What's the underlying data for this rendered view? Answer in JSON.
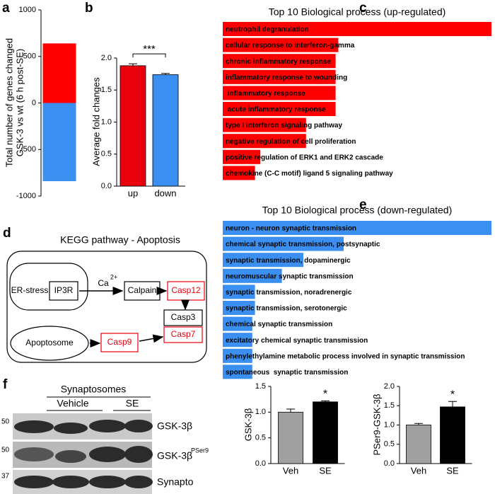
{
  "chart_data": [
    {
      "type": "bar",
      "ylabel": [
        "Total number of genes changed",
        "GSK-3 vs wt (6 h post-SE)"
      ],
      "categories": [
        null
      ],
      "series": [
        {
          "color": "#ff0000",
          "values": [
            640
          ]
        },
        {
          "color": "#3a8ff0",
          "values": [
            -840
          ]
        }
      ],
      "ylim": [
        -1000,
        1000
      ],
      "yticks": [
        -1000,
        -500,
        0,
        500,
        1000
      ]
    },
    {
      "type": "bar",
      "ylabel": "Average fold changes",
      "categories": [
        "up",
        "down"
      ],
      "values": [
        1.88,
        1.74
      ],
      "errors": [
        0.03,
        0.02
      ],
      "colors": [
        "#e8000d",
        "#3a8ff0"
      ],
      "ylim": [
        0,
        2
      ],
      "yticks": [
        {
          "value": 0,
          "label": "0.0"
        },
        0.5,
        {
          "value": 1,
          "label": "1.0"
        },
        1.5,
        {
          "value": 2,
          "label": "2.0"
        }
      ],
      "annotation": "***"
    },
    {
      "type": "hbar",
      "title": "Top 10 Biological process (up-regulated)",
      "color": "#ff0000",
      "xlim": [
        0,
        100
      ],
      "categories": [
        "neutrophil degranulation",
        "cellular response to interferon-gamma",
        "chronic inflammatory response",
        "inflammatory response to wounding",
        " inflammatory response",
        " acute inflammatory response",
        "type I interferon signaling pathway",
        "negative regulation of cell proliferation",
        "positive regulation of ERK1 and ERK2 cascade",
        "chemokine (C-C motif) ligand 5 signaling pathway"
      ],
      "values": [
        100,
        43,
        42,
        42,
        42,
        42,
        31,
        31,
        14,
        12
      ]
    },
    {
      "type": "hbar",
      "title": "Top 10 Biological process (down-regulated)",
      "color": "#3a8ff0",
      "xlim": [
        0,
        100
      ],
      "categories": [
        "neuron - neuron synaptic transmission",
        "chemical synaptic transmission, postsynaptic",
        "synaptic transmission, dopaminergic",
        "neuromuscular synaptic transmission",
        "synaptic transmission, noradrenergic",
        "synaptic transmission, serotonergic",
        "chemical synaptic transmission",
        "excitatory chemical synaptic transmission",
        "phenylethylamine metabolic process involved in synaptic transmission",
        "spontaneous  synaptic transmission"
      ],
      "values": [
        100,
        45,
        30,
        22,
        12,
        12,
        11,
        11,
        11,
        11
      ]
    },
    {
      "type": "bar",
      "ylabel": "GSK-3β",
      "categories": [
        "Veh",
        "SE"
      ],
      "values": [
        1,
        1.2
      ],
      "errors": [
        0.06,
        0.02
      ],
      "colors": [
        "#a0a0a0",
        "#000000"
      ],
      "ylim": [
        0,
        1.5
      ],
      "yticks": [
        {
          "value": 0,
          "label": "0.0"
        },
        0.5,
        {
          "value": 1,
          "label": "1.0"
        },
        1.5
      ],
      "annotation": "*"
    },
    {
      "type": "bar",
      "ylabel": "PSer9-GSK-3β",
      "categories": [
        "Veh",
        "SE"
      ],
      "values": [
        1,
        1.47
      ],
      "errors": [
        0.04,
        0.14
      ],
      "colors": [
        "#a0a0a0",
        "#000000"
      ],
      "ylim": [
        0,
        2
      ],
      "yticks": [
        {
          "value": 0,
          "label": "0.0"
        },
        0.5,
        {
          "value": 1,
          "label": "1.0"
        },
        1.5,
        {
          "value": 2,
          "label": "2.0"
        }
      ],
      "annotation": "*"
    }
  ],
  "panel_labels": [
    "a",
    "b",
    "c",
    "d",
    "e",
    "f"
  ],
  "diagram": {
    "title": "KEGG pathway - Apoptosis",
    "nodes": [
      "ER-stress",
      "IP3R",
      "Calpain",
      "Casp12",
      "Casp3",
      "Casp7",
      "Apoptosome",
      "Casp9"
    ],
    "ion": {
      "label": "Ca",
      "superscript": "2+"
    }
  },
  "blot": {
    "title": "Synaptosomes",
    "groups": [
      "Vehicle",
      "SE"
    ],
    "markers": [
      "50",
      "50",
      "37"
    ],
    "rows": [
      "GSK-3β",
      {
        "label": "GSK-3β",
        "superscript": "PSer9"
      },
      "Synapto"
    ]
  }
}
